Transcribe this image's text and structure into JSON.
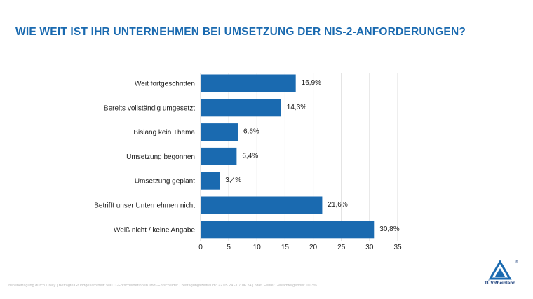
{
  "title": "WIE WEIT IST IHR UNTERNEHMEN BEI UMSETZUNG DER NIS-2-ANFORDERUNGEN?",
  "footnote": "Onlinebefragung durch Civey | Befragte Grundgesamtheit: 500 IT-Entscheiderinnen und -Entscheider | Befragungszeitraum: 22.05.24 - 07.06.24 | Stat. Fehler Gesamtergebnis: 10,3%",
  "logo": {
    "text": "TÜVRheinland",
    "reg": "®",
    "icon": "tuv-triangle-icon"
  },
  "colors": {
    "bar": "#1a6ab0",
    "grid": "#dddddd",
    "title": "#1a6ab0"
  },
  "chart_data": {
    "type": "bar",
    "orientation": "horizontal",
    "categories": [
      "Weit fortgeschritten",
      "Bereits vollständig umgesetzt",
      "Bislang kein Thema",
      "Umsetzung begonnen",
      "Umsetzung geplant",
      "Betrifft unser Unternehmen nicht",
      "Weiß nicht / keine Angabe"
    ],
    "values": [
      16.9,
      14.3,
      6.6,
      6.4,
      3.4,
      21.6,
      30.8
    ],
    "value_labels": [
      "16,9%",
      "14,3%",
      "6,6%",
      "6,4%",
      "3,4%",
      "21,6%",
      "30,8%"
    ],
    "xlim": [
      0,
      35
    ],
    "xticks": [
      0,
      5,
      10,
      15,
      20,
      25,
      30,
      35
    ],
    "xtick_labels": [
      "0",
      "5",
      "10",
      "15",
      "20",
      "25",
      "30",
      "35"
    ],
    "grid": true
  }
}
